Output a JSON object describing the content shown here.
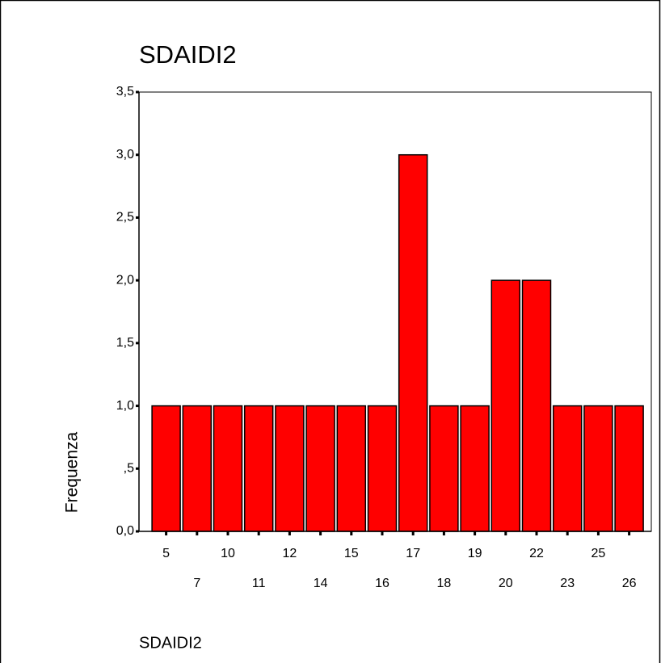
{
  "chart_data": {
    "type": "bar",
    "title": "SDAIDI2",
    "x_label": "SDAIDI2",
    "y_label": "Frequenza",
    "categories": [
      "5",
      "7",
      "10",
      "11",
      "12",
      "14",
      "15",
      "16",
      "17",
      "18",
      "19",
      "20",
      "22",
      "23",
      "25",
      "26"
    ],
    "values": [
      1,
      1,
      1,
      1,
      1,
      1,
      1,
      1,
      3,
      1,
      1,
      2,
      2,
      1,
      1,
      1
    ],
    "color": "#ff0000",
    "ylim": [
      0,
      3.5
    ],
    "yticks": [
      {
        "value": 0,
        "label": "0,0"
      },
      {
        "value": 0.5,
        "label": ",5"
      },
      {
        "value": 1,
        "label": "1,0"
      },
      {
        "value": 1.5,
        "label": "1,5"
      },
      {
        "value": 2,
        "label": "2,0"
      },
      {
        "value": 2.5,
        "label": "2,5"
      },
      {
        "value": 3,
        "label": "3,0"
      },
      {
        "value": 3.5,
        "label": "3,5"
      }
    ]
  }
}
